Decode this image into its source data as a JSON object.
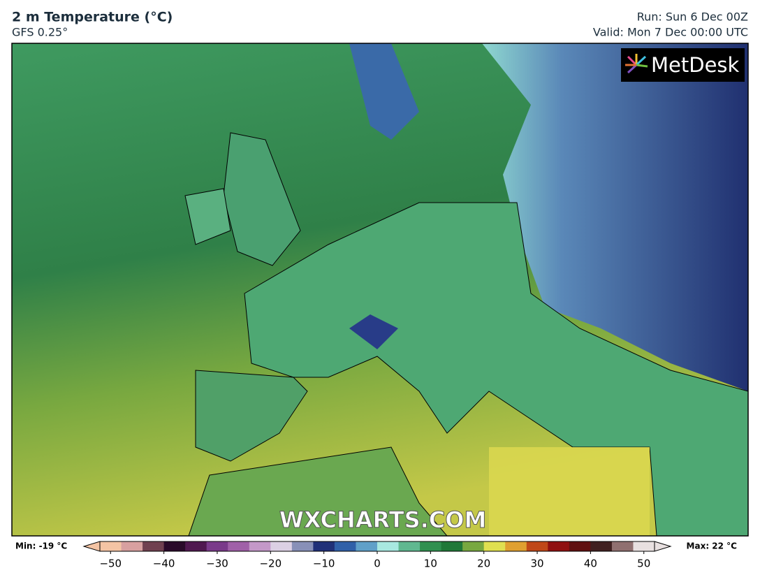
{
  "header": {
    "title": "2 m Temperature (°C)",
    "model": "GFS 0.25°",
    "run": "Run: Sun 6 Dec 00Z",
    "valid": "Valid: Mon 7 Dec 00:00 UTC"
  },
  "logo": "MetDesk",
  "watermark": "WXCHARTS.COM",
  "colorbar": {
    "min_label": "Min: -19 °C",
    "max_label": "Max: 22 °C",
    "lim": [
      -52,
      52
    ],
    "ticks": [
      {
        "value": -50,
        "label": "−50"
      },
      {
        "value": -40,
        "label": "−40"
      },
      {
        "value": -30,
        "label": "−30"
      },
      {
        "value": -20,
        "label": "−20"
      },
      {
        "value": -10,
        "label": "−10"
      },
      0,
      10,
      20,
      30,
      40,
      50
    ],
    "stops": [
      {
        "value": -52,
        "color": "#f4c4a4"
      },
      {
        "value": -48,
        "color": "#d8a0a0"
      },
      {
        "value": -44,
        "color": "#704050"
      },
      {
        "value": -40,
        "color": "#2a0a2a"
      },
      {
        "value": -36,
        "color": "#501850"
      },
      {
        "value": -32,
        "color": "#7a3a8a"
      },
      {
        "value": -28,
        "color": "#a060a8"
      },
      {
        "value": -24,
        "color": "#c498c8"
      },
      {
        "value": -20,
        "color": "#dcd0e4"
      },
      {
        "value": -16,
        "color": "#8890b8"
      },
      {
        "value": -12,
        "color": "#203078"
      },
      {
        "value": -8,
        "color": "#3060a8"
      },
      {
        "value": -4,
        "color": "#60a0c8"
      },
      {
        "value": 0,
        "color": "#a8e8e0"
      },
      {
        "value": 4,
        "color": "#60b890"
      },
      {
        "value": 8,
        "color": "#309050"
      },
      {
        "value": 12,
        "color": "#207838"
      },
      {
        "value": 16,
        "color": "#78a840"
      },
      {
        "value": 20,
        "color": "#e0e050"
      },
      {
        "value": 24,
        "color": "#e0a030"
      },
      {
        "value": 28,
        "color": "#c04818"
      },
      {
        "value": 32,
        "color": "#901010"
      },
      {
        "value": 36,
        "color": "#601010"
      },
      {
        "value": 40,
        "color": "#402020"
      },
      {
        "value": 44,
        "color": "#907070"
      },
      {
        "value": 48,
        "color": "#e8e0e0"
      }
    ]
  }
}
